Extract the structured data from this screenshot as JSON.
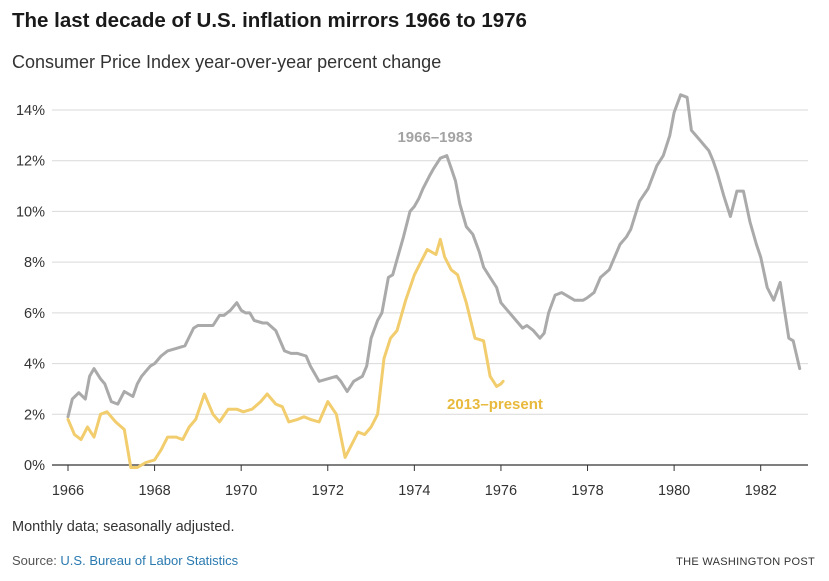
{
  "header": {
    "title": "The last decade of U.S. inflation mirrors 1966 to 1976",
    "subtitle": "Consumer Price Index year-over-year percent change"
  },
  "footer": {
    "note": "Monthly data; seasonally adjusted.",
    "source_prefix": "Source: ",
    "source_link": "U.S. Bureau of Labor Statistics",
    "brand": "THE WASHINGTON POST"
  },
  "colors": {
    "series_1966": "#aaaaaa",
    "series_2013": "#f2cd6e",
    "label_1966": "#a3a3a3",
    "label_2013": "#e8b93c",
    "grid": "#d9d9d9",
    "axis": "#333333",
    "link": "#2a7ab0"
  },
  "chart_data": {
    "type": "line",
    "xlabel": "",
    "ylabel": "",
    "xlim": [
      1966,
      1983
    ],
    "ylim": [
      0,
      14
    ],
    "x_ticks": [
      1966,
      1968,
      1970,
      1972,
      1974,
      1976,
      1978,
      1980,
      1982
    ],
    "x_tick_labels": [
      "1966",
      "1968",
      "1970",
      "1972",
      "1974",
      "1976",
      "1978",
      "1980",
      "1982"
    ],
    "y_ticks": [
      0,
      2,
      4,
      6,
      8,
      10,
      12,
      14
    ],
    "y_tick_labels": [
      "0%",
      "2%",
      "4%",
      "6%",
      "8%",
      "10%",
      "12%",
      "14%"
    ],
    "grid": "horizontal",
    "legend": "inline labels",
    "series": [
      {
        "name": "1966–1983",
        "x": [
          1966.0,
          1966.1,
          1966.25,
          1966.4,
          1966.5,
          1966.6,
          1966.75,
          1966.85,
          1967.0,
          1967.15,
          1967.3,
          1967.5,
          1967.6,
          1967.7,
          1967.8,
          1967.9,
          1968.0,
          1968.15,
          1968.3,
          1968.5,
          1968.7,
          1968.9,
          1969.0,
          1969.2,
          1969.35,
          1969.5,
          1969.6,
          1969.75,
          1969.9,
          1970.0,
          1970.1,
          1970.2,
          1970.3,
          1970.5,
          1970.6,
          1970.8,
          1971.0,
          1971.15,
          1971.3,
          1971.5,
          1971.6,
          1971.8,
          1972.0,
          1972.2,
          1972.3,
          1972.45,
          1972.6,
          1972.8,
          1972.9,
          1973.0,
          1973.15,
          1973.25,
          1973.4,
          1973.5,
          1973.6,
          1973.75,
          1973.9,
          1974.0,
          1974.1,
          1974.2,
          1974.35,
          1974.45,
          1974.6,
          1974.75,
          1974.85,
          1974.95,
          1975.05,
          1975.2,
          1975.35,
          1975.5,
          1975.6,
          1975.75,
          1975.9,
          1976.0,
          1976.2,
          1976.35,
          1976.5,
          1976.6,
          1976.75,
          1976.9,
          1977.0,
          1977.1,
          1977.25,
          1977.4,
          1977.5,
          1977.7,
          1977.9,
          1978.0,
          1978.15,
          1978.3,
          1978.5,
          1978.75,
          1978.9,
          1979.0,
          1979.2,
          1979.4,
          1979.6,
          1979.75,
          1979.9,
          1980.0,
          1980.15,
          1980.3,
          1980.4,
          1980.5,
          1980.6,
          1980.7,
          1980.8,
          1980.9,
          1981.0,
          1981.15,
          1981.3,
          1981.45,
          1981.6,
          1981.75,
          1981.9,
          1982.0,
          1982.15,
          1982.3,
          1982.45,
          1982.55,
          1982.65,
          1982.75,
          1982.9
        ],
        "values": [
          1.9,
          2.6,
          2.85,
          2.6,
          3.5,
          3.8,
          3.4,
          3.2,
          2.5,
          2.4,
          2.9,
          2.7,
          3.2,
          3.5,
          3.7,
          3.9,
          4.0,
          4.3,
          4.5,
          4.6,
          4.7,
          5.4,
          5.5,
          5.5,
          5.5,
          5.9,
          5.9,
          6.1,
          6.4,
          6.1,
          6.0,
          6.0,
          5.7,
          5.6,
          5.6,
          5.3,
          4.5,
          4.4,
          4.4,
          4.3,
          3.9,
          3.3,
          3.4,
          3.5,
          3.3,
          2.9,
          3.3,
          3.5,
          3.9,
          5.0,
          5.7,
          6.0,
          7.4,
          7.5,
          8.1,
          9.0,
          10.0,
          10.2,
          10.5,
          10.9,
          11.4,
          11.7,
          12.1,
          12.2,
          11.7,
          11.2,
          10.3,
          9.4,
          9.1,
          8.4,
          7.8,
          7.4,
          7.0,
          6.4,
          6.0,
          5.7,
          5.4,
          5.5,
          5.3,
          5.0,
          5.2,
          6.0,
          6.7,
          6.8,
          6.7,
          6.5,
          6.5,
          6.6,
          6.8,
          7.4,
          7.7,
          8.7,
          9.0,
          9.3,
          10.4,
          10.9,
          11.8,
          12.2,
          13.0,
          13.9,
          14.6,
          14.5,
          13.2,
          13.0,
          12.8,
          12.6,
          12.4,
          12.0,
          11.5,
          10.6,
          9.8,
          10.8,
          10.8,
          9.6,
          8.7,
          8.2,
          7.0,
          6.5,
          7.2,
          6.1,
          5.0,
          4.9,
          3.8
        ]
      },
      {
        "name": "2013–present",
        "x": [
          1966.0,
          1966.15,
          1966.3,
          1966.45,
          1966.6,
          1966.75,
          1966.9,
          1967.1,
          1967.3,
          1967.45,
          1967.6,
          1967.8,
          1968.0,
          1968.15,
          1968.3,
          1968.5,
          1968.65,
          1968.8,
          1968.95,
          1969.15,
          1969.35,
          1969.5,
          1969.7,
          1969.9,
          1970.05,
          1970.25,
          1970.45,
          1970.6,
          1970.8,
          1970.95,
          1971.1,
          1971.3,
          1971.45,
          1971.6,
          1971.8,
          1972.0,
          1972.2,
          1972.4,
          1972.55,
          1972.7,
          1972.85,
          1973.0,
          1973.15,
          1973.3,
          1973.45,
          1973.6,
          1973.8,
          1974.0,
          1974.15,
          1974.3,
          1974.5,
          1974.6,
          1974.7,
          1974.85,
          1975.0,
          1975.2,
          1975.4,
          1975.6,
          1975.75,
          1975.9,
          1976.0,
          1976.05
        ],
        "values": [
          1.8,
          1.2,
          1.0,
          1.5,
          1.1,
          2.0,
          2.1,
          1.7,
          1.4,
          -0.1,
          -0.1,
          0.1,
          0.2,
          0.6,
          1.1,
          1.1,
          1.0,
          1.5,
          1.8,
          2.8,
          2.0,
          1.7,
          2.2,
          2.2,
          2.1,
          2.2,
          2.5,
          2.8,
          2.4,
          2.3,
          1.7,
          1.8,
          1.9,
          1.8,
          1.7,
          2.5,
          2.0,
          0.3,
          0.8,
          1.3,
          1.2,
          1.5,
          2.0,
          4.2,
          5.0,
          5.3,
          6.5,
          7.5,
          8.0,
          8.5,
          8.3,
          8.9,
          8.2,
          7.7,
          7.5,
          6.4,
          5.0,
          4.9,
          3.5,
          3.1,
          3.2,
          3.3
        ]
      }
    ],
    "annotations": [
      "1966–1983",
      "2013–present"
    ]
  }
}
